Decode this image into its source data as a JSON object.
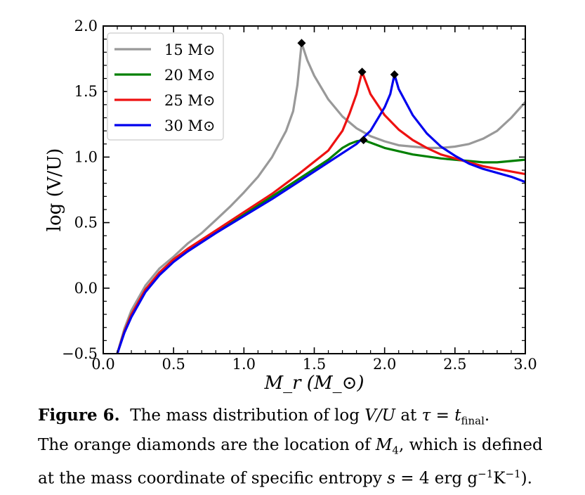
{
  "chart_data": {
    "type": "line",
    "title": "",
    "xlabel": "M_r (M_⊙)",
    "ylabel": "log (V/U)",
    "xlim": [
      0.0,
      3.0
    ],
    "ylim": [
      -0.5,
      2.0
    ],
    "xticks": [
      0.0,
      0.5,
      1.0,
      1.5,
      2.0,
      2.5,
      3.0
    ],
    "xtick_labels": [
      "0.0",
      "0.5",
      "1.0",
      "1.5",
      "2.0",
      "2.5",
      "3.0"
    ],
    "yticks": [
      -0.5,
      0.0,
      0.5,
      1.0,
      1.5,
      2.0
    ],
    "ytick_labels": [
      "−0.5",
      "0.0",
      "0.5",
      "1.0",
      "1.5",
      "2.0"
    ],
    "grid": false,
    "legend_position": "top-left",
    "series": [
      {
        "name": "15 M⊙",
        "color": "#999999",
        "x": [
          0.1,
          0.15,
          0.2,
          0.3,
          0.4,
          0.5,
          0.6,
          0.7,
          0.8,
          0.9,
          1.0,
          1.1,
          1.2,
          1.3,
          1.35,
          1.38,
          1.41,
          1.45,
          1.5,
          1.6,
          1.7,
          1.8,
          1.9,
          2.0,
          2.1,
          2.2,
          2.3,
          2.4,
          2.5,
          2.6,
          2.7,
          2.8,
          2.9,
          3.0
        ],
        "y": [
          -0.5,
          -0.31,
          -0.17,
          0.02,
          0.15,
          0.24,
          0.34,
          0.42,
          0.52,
          0.62,
          0.73,
          0.85,
          1.0,
          1.2,
          1.35,
          1.55,
          1.87,
          1.74,
          1.62,
          1.44,
          1.31,
          1.22,
          1.16,
          1.12,
          1.09,
          1.08,
          1.07,
          1.07,
          1.08,
          1.1,
          1.14,
          1.2,
          1.3,
          1.42
        ],
        "marker": {
          "x": 1.41,
          "y": 1.87
        }
      },
      {
        "name": "20 M⊙",
        "color": "#008000",
        "x": [
          0.1,
          0.15,
          0.2,
          0.3,
          0.4,
          0.5,
          0.6,
          0.8,
          1.0,
          1.2,
          1.4,
          1.6,
          1.7,
          1.75,
          1.8,
          1.85,
          1.9,
          2.0,
          2.2,
          2.4,
          2.6,
          2.7,
          2.8,
          3.0
        ],
        "y": [
          -0.5,
          -0.33,
          -0.2,
          -0.02,
          0.11,
          0.21,
          0.29,
          0.43,
          0.56,
          0.7,
          0.84,
          0.98,
          1.07,
          1.1,
          1.12,
          1.13,
          1.11,
          1.07,
          1.02,
          0.99,
          0.97,
          0.96,
          0.96,
          0.98
        ],
        "marker": {
          "x": 1.85,
          "y": 1.13
        }
      },
      {
        "name": "25 M⊙",
        "color": "#ee1111",
        "x": [
          0.1,
          0.15,
          0.2,
          0.3,
          0.4,
          0.5,
          0.6,
          0.8,
          1.0,
          1.2,
          1.4,
          1.6,
          1.7,
          1.75,
          1.8,
          1.84,
          1.9,
          2.0,
          2.1,
          2.2,
          2.3,
          2.4,
          2.5,
          2.6,
          2.7,
          2.8,
          2.9,
          3.0
        ],
        "y": [
          -0.5,
          -0.33,
          -0.2,
          -0.01,
          0.12,
          0.22,
          0.3,
          0.44,
          0.58,
          0.72,
          0.88,
          1.05,
          1.2,
          1.33,
          1.48,
          1.65,
          1.48,
          1.32,
          1.21,
          1.13,
          1.07,
          1.02,
          0.99,
          0.96,
          0.93,
          0.91,
          0.89,
          0.87
        ]
      },
      {
        "name": "30 M⊙",
        "color": "#0000ee",
        "x": [
          0.1,
          0.15,
          0.2,
          0.3,
          0.4,
          0.5,
          0.6,
          0.8,
          1.0,
          1.2,
          1.4,
          1.6,
          1.8,
          1.9,
          2.0,
          2.04,
          2.07,
          2.1,
          2.2,
          2.3,
          2.4,
          2.5,
          2.6,
          2.7,
          2.8,
          2.9,
          3.0
        ],
        "y": [
          -0.5,
          -0.34,
          -0.22,
          -0.03,
          0.1,
          0.2,
          0.28,
          0.42,
          0.55,
          0.68,
          0.82,
          0.96,
          1.1,
          1.2,
          1.38,
          1.48,
          1.63,
          1.52,
          1.32,
          1.18,
          1.08,
          1.01,
          0.95,
          0.91,
          0.88,
          0.85,
          0.81
        ],
        "marker": {
          "x": 2.07,
          "y": 1.63
        }
      }
    ],
    "extra_markers": [
      {
        "x": 1.84,
        "y": 1.65
      }
    ]
  },
  "legend_unit": "M⊙",
  "caption": {
    "label": "Figure 6.",
    "line1a": "The mass distribution of log ",
    "line1_math": "V/U",
    "line1b": " at ",
    "line1_tau": "τ = t",
    "line1_sub": "final",
    "line1_end": ".",
    "line2a": "The orange diamonds are the location of ",
    "line2_math": "M",
    "line2_sub": "4",
    "line2b": ", which is defined",
    "line3a": "at the mass coordinate of specific entropy ",
    "line3_math": "s",
    "line3b": " = 4 erg g",
    "line3_sup1": "−1",
    "line3c": "K",
    "line3_sup2": "−1",
    "line3d": ")."
  }
}
